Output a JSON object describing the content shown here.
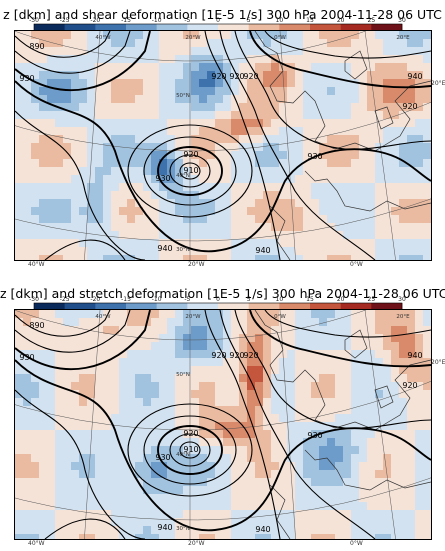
{
  "panels": [
    {
      "title": "z [dkm] and shear deformation [1E-5 1/s] 300 hPa 2004-11-28 06 UTC",
      "quantity": "shear"
    },
    {
      "title": "z [dkm] and stretch deformation [1E-5 1/s] 300 hPa 2004-11-28 06 UTC",
      "quantity": "stretch"
    }
  ],
  "colorbar": {
    "ticks": [
      "-30",
      "-25",
      "-20",
      "-15",
      "-10",
      "-5",
      "0",
      "5",
      "10",
      "15",
      "20",
      "25",
      "30"
    ],
    "colors": [
      "#0b2a5c",
      "#1f4e8a",
      "#3d72ad",
      "#6d9ccb",
      "#a2c3e0",
      "#d2e2f0",
      "#f6e3d8",
      "#ebbba1",
      "#d98a6b",
      "#c4563d",
      "#a52b22",
      "#6e1118"
    ]
  },
  "map": {
    "lon_labels_top": [
      "40°W",
      "20°W",
      "0°W",
      "20°E"
    ],
    "lon_labels_bottom": [
      "40°W",
      "20°W",
      "0°W"
    ],
    "lat_labels": [
      "50°N",
      "40°N",
      "30°N"
    ],
    "right_labels": [
      "20°E"
    ],
    "contour_labels": [
      "890",
      "910",
      "920",
      "920",
      "920",
      "920",
      "930",
      "930",
      "940",
      "940",
      "940",
      "930",
      "920"
    ]
  }
}
